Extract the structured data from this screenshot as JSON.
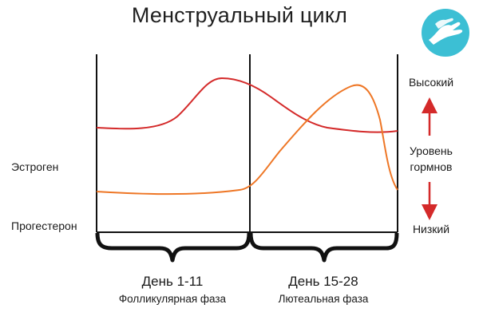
{
  "title": "Менструальный цикл",
  "left_labels": {
    "estrogen": "Эстроген",
    "progesterone": "Прогестерон"
  },
  "right_axis": {
    "high": "Высокий",
    "level_line1": "Уровень",
    "level_line2": "гормнов",
    "low": "Низкий",
    "arrow_color": "#d42a2a"
  },
  "phases": [
    {
      "days": "День 1-11",
      "name": "Фолликулярная фаза"
    },
    {
      "days": "День 15-28",
      "name": "Лютеальная фаза"
    }
  ],
  "curves": {
    "estrogen_color": "#d42a2a",
    "progesterone_color": "#ee7625"
  },
  "logo": {
    "icon": "helping-hands-icon",
    "color": "#3cbfd4"
  }
}
